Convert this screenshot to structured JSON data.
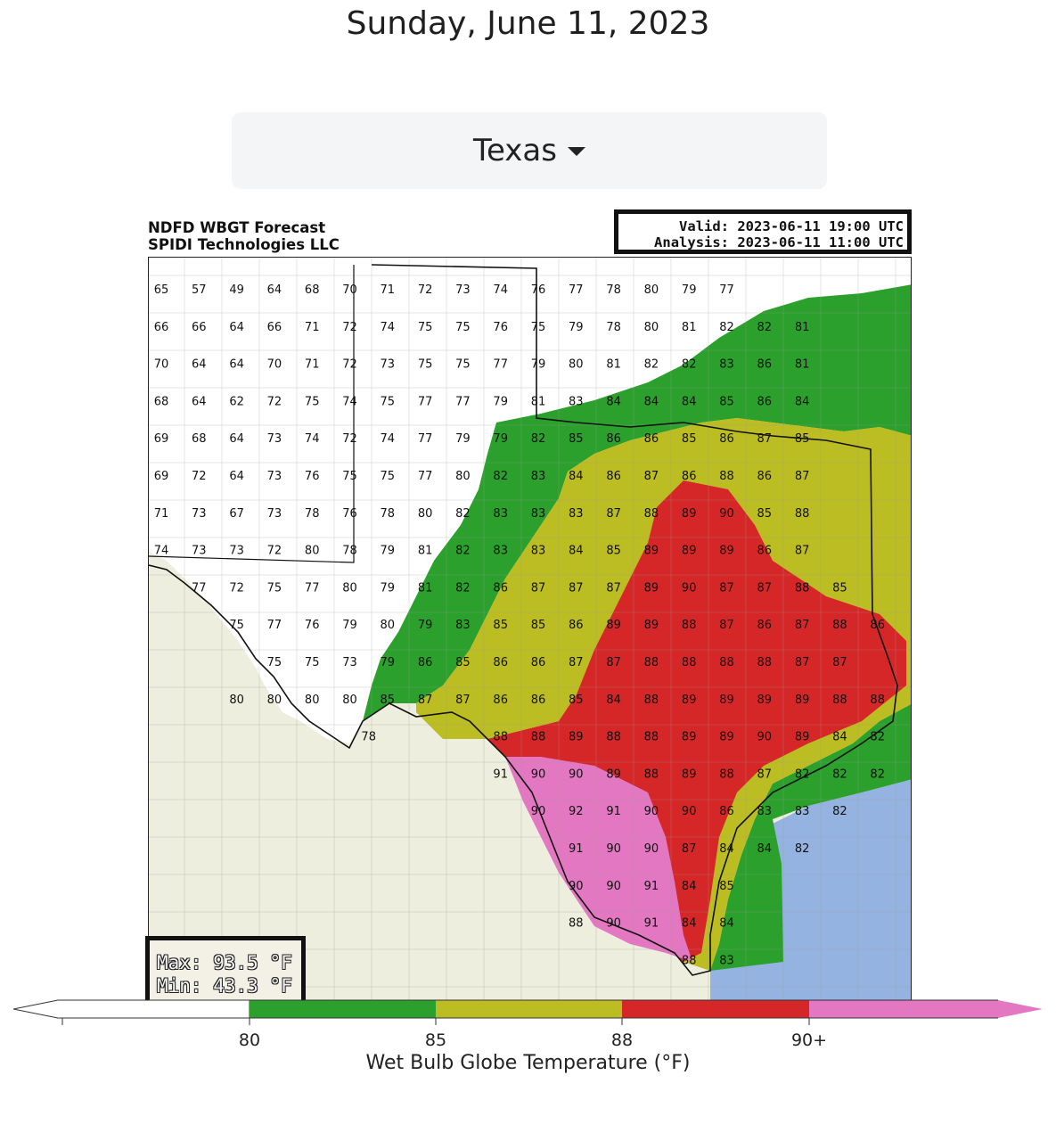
{
  "page": {
    "date": "Sunday, June 11, 2023"
  },
  "region_selector": {
    "selected": "Texas"
  },
  "map": {
    "title_line1": "NDFD WBGT Forecast",
    "title_line2": "SPIDI Technologies LLC",
    "valid": "Valid: 2023-06-11 19:00 UTC",
    "analysis": "Analysis: 2023-06-11 11:00 UTC",
    "max": "Max: 93.5 °F",
    "min": "Min: 43.3 °F"
  },
  "colorbar": {
    "title": "Wet Bulb Globe Temperature (°F)",
    "ticks": [
      "80",
      "85",
      "88",
      "90+"
    ],
    "bins": [
      {
        "range": "below 80",
        "color": "#ffffff"
      },
      {
        "range": "80-85",
        "color": "#2ca02c"
      },
      {
        "range": "85-88",
        "color": "#bcbd22"
      },
      {
        "range": "88-90",
        "color": "#d62728"
      },
      {
        "range": "90+",
        "color": "#e377c2"
      }
    ]
  },
  "colors": {
    "land": "#edeedd",
    "water": "#94b3e0",
    "white_bin": "#ffffff",
    "green_bin": "#2ca02c",
    "yellow_bin": "#bcbd22",
    "red_bin": "#d62728",
    "pink_bin": "#e377c2"
  },
  "grid_labels": [
    {
      "lon": -106.4,
      "lat": 36.9,
      "v": "65"
    },
    {
      "lon": -105.6,
      "lat": 36.9,
      "v": "57"
    },
    {
      "lon": -104.8,
      "lat": 36.9,
      "v": "49"
    },
    {
      "lon": -104.0,
      "lat": 36.9,
      "v": "64"
    },
    {
      "lon": -103.2,
      "lat": 36.9,
      "v": "68"
    },
    {
      "lon": -102.4,
      "lat": 36.9,
      "v": "70"
    },
    {
      "lon": -101.6,
      "lat": 36.9,
      "v": "71"
    },
    {
      "lon": -100.8,
      "lat": 36.9,
      "v": "72"
    },
    {
      "lon": -100.0,
      "lat": 36.9,
      "v": "73"
    },
    {
      "lon": -99.2,
      "lat": 36.9,
      "v": "74"
    },
    {
      "lon": -98.4,
      "lat": 36.9,
      "v": "76"
    },
    {
      "lon": -97.6,
      "lat": 36.9,
      "v": "77"
    },
    {
      "lon": -96.8,
      "lat": 36.9,
      "v": "78"
    },
    {
      "lon": -96.0,
      "lat": 36.9,
      "v": "80"
    },
    {
      "lon": -95.2,
      "lat": 36.9,
      "v": "79"
    },
    {
      "lon": -94.4,
      "lat": 36.9,
      "v": "77"
    },
    {
      "lon": -106.4,
      "lat": 36.1,
      "v": "66"
    },
    {
      "lon": -105.6,
      "lat": 36.1,
      "v": "66"
    },
    {
      "lon": -104.8,
      "lat": 36.1,
      "v": "64"
    },
    {
      "lon": -104.0,
      "lat": 36.1,
      "v": "66"
    },
    {
      "lon": -103.2,
      "lat": 36.1,
      "v": "71"
    },
    {
      "lon": -102.4,
      "lat": 36.1,
      "v": "72"
    },
    {
      "lon": -101.6,
      "lat": 36.1,
      "v": "74"
    },
    {
      "lon": -100.8,
      "lat": 36.1,
      "v": "75"
    },
    {
      "lon": -100.0,
      "lat": 36.1,
      "v": "75"
    },
    {
      "lon": -99.2,
      "lat": 36.1,
      "v": "76"
    },
    {
      "lon": -98.4,
      "lat": 36.1,
      "v": "75"
    },
    {
      "lon": -97.6,
      "lat": 36.1,
      "v": "79"
    },
    {
      "lon": -96.8,
      "lat": 36.1,
      "v": "78"
    },
    {
      "lon": -96.0,
      "lat": 36.1,
      "v": "80"
    },
    {
      "lon": -95.2,
      "lat": 36.1,
      "v": "81"
    },
    {
      "lon": -94.4,
      "lat": 36.1,
      "v": "82"
    },
    {
      "lon": -93.6,
      "lat": 36.1,
      "v": "82"
    },
    {
      "lon": -92.8,
      "lat": 36.1,
      "v": "81"
    },
    {
      "lon": -106.4,
      "lat": 35.3,
      "v": "70"
    },
    {
      "lon": -105.6,
      "lat": 35.3,
      "v": "64"
    },
    {
      "lon": -104.8,
      "lat": 35.3,
      "v": "64"
    },
    {
      "lon": -104.0,
      "lat": 35.3,
      "v": "70"
    },
    {
      "lon": -103.2,
      "lat": 35.3,
      "v": "71"
    },
    {
      "lon": -102.4,
      "lat": 35.3,
      "v": "72"
    },
    {
      "lon": -101.6,
      "lat": 35.3,
      "v": "73"
    },
    {
      "lon": -100.8,
      "lat": 35.3,
      "v": "75"
    },
    {
      "lon": -100.0,
      "lat": 35.3,
      "v": "75"
    },
    {
      "lon": -99.2,
      "lat": 35.3,
      "v": "77"
    },
    {
      "lon": -98.4,
      "lat": 35.3,
      "v": "79"
    },
    {
      "lon": -97.6,
      "lat": 35.3,
      "v": "80"
    },
    {
      "lon": -96.8,
      "lat": 35.3,
      "v": "81"
    },
    {
      "lon": -96.0,
      "lat": 35.3,
      "v": "82"
    },
    {
      "lon": -95.2,
      "lat": 35.3,
      "v": "82"
    },
    {
      "lon": -94.4,
      "lat": 35.3,
      "v": "83"
    },
    {
      "lon": -93.6,
      "lat": 35.3,
      "v": "86"
    },
    {
      "lon": -92.8,
      "lat": 35.3,
      "v": "81"
    },
    {
      "lon": -106.4,
      "lat": 34.5,
      "v": "68"
    },
    {
      "lon": -105.6,
      "lat": 34.5,
      "v": "64"
    },
    {
      "lon": -104.8,
      "lat": 34.5,
      "v": "62"
    },
    {
      "lon": -104.0,
      "lat": 34.5,
      "v": "72"
    },
    {
      "lon": -103.2,
      "lat": 34.5,
      "v": "75"
    },
    {
      "lon": -102.4,
      "lat": 34.5,
      "v": "74"
    },
    {
      "lon": -101.6,
      "lat": 34.5,
      "v": "75"
    },
    {
      "lon": -100.8,
      "lat": 34.5,
      "v": "77"
    },
    {
      "lon": -100.0,
      "lat": 34.5,
      "v": "77"
    },
    {
      "lon": -99.2,
      "lat": 34.5,
      "v": "79"
    },
    {
      "lon": -98.4,
      "lat": 34.5,
      "v": "81"
    },
    {
      "lon": -97.6,
      "lat": 34.5,
      "v": "83"
    },
    {
      "lon": -96.8,
      "lat": 34.5,
      "v": "84"
    },
    {
      "lon": -96.0,
      "lat": 34.5,
      "v": "84"
    },
    {
      "lon": -95.2,
      "lat": 34.5,
      "v": "84"
    },
    {
      "lon": -94.4,
      "lat": 34.5,
      "v": "85"
    },
    {
      "lon": -93.6,
      "lat": 34.5,
      "v": "86"
    },
    {
      "lon": -92.8,
      "lat": 34.5,
      "v": "84"
    },
    {
      "lon": -106.4,
      "lat": 33.7,
      "v": "69"
    },
    {
      "lon": -105.6,
      "lat": 33.7,
      "v": "68"
    },
    {
      "lon": -104.8,
      "lat": 33.7,
      "v": "64"
    },
    {
      "lon": -104.0,
      "lat": 33.7,
      "v": "73"
    },
    {
      "lon": -103.2,
      "lat": 33.7,
      "v": "74"
    },
    {
      "lon": -102.4,
      "lat": 33.7,
      "v": "72"
    },
    {
      "lon": -101.6,
      "lat": 33.7,
      "v": "74"
    },
    {
      "lon": -100.8,
      "lat": 33.7,
      "v": "77"
    },
    {
      "lon": -100.0,
      "lat": 33.7,
      "v": "79"
    },
    {
      "lon": -99.2,
      "lat": 33.7,
      "v": "79"
    },
    {
      "lon": -98.4,
      "lat": 33.7,
      "v": "82"
    },
    {
      "lon": -97.6,
      "lat": 33.7,
      "v": "85"
    },
    {
      "lon": -96.8,
      "lat": 33.7,
      "v": "86"
    },
    {
      "lon": -96.0,
      "lat": 33.7,
      "v": "86"
    },
    {
      "lon": -95.2,
      "lat": 33.7,
      "v": "85"
    },
    {
      "lon": -94.4,
      "lat": 33.7,
      "v": "86"
    },
    {
      "lon": -93.6,
      "lat": 33.7,
      "v": "87"
    },
    {
      "lon": -92.8,
      "lat": 33.7,
      "v": "85"
    },
    {
      "lon": -106.4,
      "lat": 32.9,
      "v": "69"
    },
    {
      "lon": -105.6,
      "lat": 32.9,
      "v": "72"
    },
    {
      "lon": -104.8,
      "lat": 32.9,
      "v": "64"
    },
    {
      "lon": -104.0,
      "lat": 32.9,
      "v": "73"
    },
    {
      "lon": -103.2,
      "lat": 32.9,
      "v": "76"
    },
    {
      "lon": -102.4,
      "lat": 32.9,
      "v": "75"
    },
    {
      "lon": -101.6,
      "lat": 32.9,
      "v": "75"
    },
    {
      "lon": -100.8,
      "lat": 32.9,
      "v": "77"
    },
    {
      "lon": -100.0,
      "lat": 32.9,
      "v": "80"
    },
    {
      "lon": -99.2,
      "lat": 32.9,
      "v": "82"
    },
    {
      "lon": -98.4,
      "lat": 32.9,
      "v": "83"
    },
    {
      "lon": -97.6,
      "lat": 32.9,
      "v": "84"
    },
    {
      "lon": -96.8,
      "lat": 32.9,
      "v": "86"
    },
    {
      "lon": -96.0,
      "lat": 32.9,
      "v": "87"
    },
    {
      "lon": -95.2,
      "lat": 32.9,
      "v": "86"
    },
    {
      "lon": -94.4,
      "lat": 32.9,
      "v": "88"
    },
    {
      "lon": -93.6,
      "lat": 32.9,
      "v": "86"
    },
    {
      "lon": -92.8,
      "lat": 32.9,
      "v": "87"
    },
    {
      "lon": -106.4,
      "lat": 32.1,
      "v": "71"
    },
    {
      "lon": -105.6,
      "lat": 32.1,
      "v": "73"
    },
    {
      "lon": -104.8,
      "lat": 32.1,
      "v": "67"
    },
    {
      "lon": -104.0,
      "lat": 32.1,
      "v": "73"
    },
    {
      "lon": -103.2,
      "lat": 32.1,
      "v": "78"
    },
    {
      "lon": -102.4,
      "lat": 32.1,
      "v": "76"
    },
    {
      "lon": -101.6,
      "lat": 32.1,
      "v": "78"
    },
    {
      "lon": -100.8,
      "lat": 32.1,
      "v": "80"
    },
    {
      "lon": -100.0,
      "lat": 32.1,
      "v": "82"
    },
    {
      "lon": -99.2,
      "lat": 32.1,
      "v": "83"
    },
    {
      "lon": -98.4,
      "lat": 32.1,
      "v": "83"
    },
    {
      "lon": -97.6,
      "lat": 32.1,
      "v": "83"
    },
    {
      "lon": -96.8,
      "lat": 32.1,
      "v": "87"
    },
    {
      "lon": -96.0,
      "lat": 32.1,
      "v": "88"
    },
    {
      "lon": -95.2,
      "lat": 32.1,
      "v": "89"
    },
    {
      "lon": -94.4,
      "lat": 32.1,
      "v": "90"
    },
    {
      "lon": -93.6,
      "lat": 32.1,
      "v": "85"
    },
    {
      "lon": -92.8,
      "lat": 32.1,
      "v": "88"
    },
    {
      "lon": -106.4,
      "lat": 31.3,
      "v": "74"
    },
    {
      "lon": -105.6,
      "lat": 31.3,
      "v": "73"
    },
    {
      "lon": -104.8,
      "lat": 31.3,
      "v": "73"
    },
    {
      "lon": -104.0,
      "lat": 31.3,
      "v": "72"
    },
    {
      "lon": -103.2,
      "lat": 31.3,
      "v": "80"
    },
    {
      "lon": -102.4,
      "lat": 31.3,
      "v": "78"
    },
    {
      "lon": -101.6,
      "lat": 31.3,
      "v": "79"
    },
    {
      "lon": -100.8,
      "lat": 31.3,
      "v": "81"
    },
    {
      "lon": -100.0,
      "lat": 31.3,
      "v": "82"
    },
    {
      "lon": -99.2,
      "lat": 31.3,
      "v": "83"
    },
    {
      "lon": -98.4,
      "lat": 31.3,
      "v": "83"
    },
    {
      "lon": -97.6,
      "lat": 31.3,
      "v": "84"
    },
    {
      "lon": -96.8,
      "lat": 31.3,
      "v": "85"
    },
    {
      "lon": -96.0,
      "lat": 31.3,
      "v": "89"
    },
    {
      "lon": -95.2,
      "lat": 31.3,
      "v": "89"
    },
    {
      "lon": -94.4,
      "lat": 31.3,
      "v": "89"
    },
    {
      "lon": -93.6,
      "lat": 31.3,
      "v": "86"
    },
    {
      "lon": -92.8,
      "lat": 31.3,
      "v": "87"
    },
    {
      "lon": -105.6,
      "lat": 30.5,
      "v": "77"
    },
    {
      "lon": -104.8,
      "lat": 30.5,
      "v": "72"
    },
    {
      "lon": -104.0,
      "lat": 30.5,
      "v": "75"
    },
    {
      "lon": -103.2,
      "lat": 30.5,
      "v": "77"
    },
    {
      "lon": -102.4,
      "lat": 30.5,
      "v": "80"
    },
    {
      "lon": -101.6,
      "lat": 30.5,
      "v": "79"
    },
    {
      "lon": -100.8,
      "lat": 30.5,
      "v": "81"
    },
    {
      "lon": -100.0,
      "lat": 30.5,
      "v": "82"
    },
    {
      "lon": -99.2,
      "lat": 30.5,
      "v": "86"
    },
    {
      "lon": -98.4,
      "lat": 30.5,
      "v": "87"
    },
    {
      "lon": -97.6,
      "lat": 30.5,
      "v": "87"
    },
    {
      "lon": -96.8,
      "lat": 30.5,
      "v": "87"
    },
    {
      "lon": -96.0,
      "lat": 30.5,
      "v": "89"
    },
    {
      "lon": -95.2,
      "lat": 30.5,
      "v": "90"
    },
    {
      "lon": -94.4,
      "lat": 30.5,
      "v": "87"
    },
    {
      "lon": -93.6,
      "lat": 30.5,
      "v": "87"
    },
    {
      "lon": -92.8,
      "lat": 30.5,
      "v": "88"
    },
    {
      "lon": -92.0,
      "lat": 30.5,
      "v": "85"
    },
    {
      "lon": -104.8,
      "lat": 29.7,
      "v": "75"
    },
    {
      "lon": -104.0,
      "lat": 29.7,
      "v": "77"
    },
    {
      "lon": -103.2,
      "lat": 29.7,
      "v": "76"
    },
    {
      "lon": -102.4,
      "lat": 29.7,
      "v": "79"
    },
    {
      "lon": -101.6,
      "lat": 29.7,
      "v": "80"
    },
    {
      "lon": -100.8,
      "lat": 29.7,
      "v": "79"
    },
    {
      "lon": -100.0,
      "lat": 29.7,
      "v": "83"
    },
    {
      "lon": -99.2,
      "lat": 29.7,
      "v": "85"
    },
    {
      "lon": -98.4,
      "lat": 29.7,
      "v": "85"
    },
    {
      "lon": -97.6,
      "lat": 29.7,
      "v": "86"
    },
    {
      "lon": -96.8,
      "lat": 29.7,
      "v": "89"
    },
    {
      "lon": -96.0,
      "lat": 29.7,
      "v": "89"
    },
    {
      "lon": -95.2,
      "lat": 29.7,
      "v": "88"
    },
    {
      "lon": -94.4,
      "lat": 29.7,
      "v": "87"
    },
    {
      "lon": -93.6,
      "lat": 29.7,
      "v": "86"
    },
    {
      "lon": -92.8,
      "lat": 29.7,
      "v": "87"
    },
    {
      "lon": -92.0,
      "lat": 29.7,
      "v": "88"
    },
    {
      "lon": -91.2,
      "lat": 29.7,
      "v": "86"
    },
    {
      "lon": -104.0,
      "lat": 28.9,
      "v": "75"
    },
    {
      "lon": -103.2,
      "lat": 28.9,
      "v": "75"
    },
    {
      "lon": -102.4,
      "lat": 28.9,
      "v": "73"
    },
    {
      "lon": -101.6,
      "lat": 28.9,
      "v": "79"
    },
    {
      "lon": -100.8,
      "lat": 28.9,
      "v": "86"
    },
    {
      "lon": -100.0,
      "lat": 28.9,
      "v": "85"
    },
    {
      "lon": -99.2,
      "lat": 28.9,
      "v": "86"
    },
    {
      "lon": -98.4,
      "lat": 28.9,
      "v": "86"
    },
    {
      "lon": -97.6,
      "lat": 28.9,
      "v": "87"
    },
    {
      "lon": -96.8,
      "lat": 28.9,
      "v": "87"
    },
    {
      "lon": -96.0,
      "lat": 28.9,
      "v": "88"
    },
    {
      "lon": -95.2,
      "lat": 28.9,
      "v": "88"
    },
    {
      "lon": -94.4,
      "lat": 28.9,
      "v": "88"
    },
    {
      "lon": -93.6,
      "lat": 28.9,
      "v": "88"
    },
    {
      "lon": -92.8,
      "lat": 28.9,
      "v": "87"
    },
    {
      "lon": -92.0,
      "lat": 28.9,
      "v": "87"
    },
    {
      "lon": -104.8,
      "lat": 28.1,
      "v": "80"
    },
    {
      "lon": -104.0,
      "lat": 28.1,
      "v": "80"
    },
    {
      "lon": -103.2,
      "lat": 28.1,
      "v": "80"
    },
    {
      "lon": -102.4,
      "lat": 28.1,
      "v": "80"
    },
    {
      "lon": -101.6,
      "lat": 28.1,
      "v": "85"
    },
    {
      "lon": -100.8,
      "lat": 28.1,
      "v": "87"
    },
    {
      "lon": -100.0,
      "lat": 28.1,
      "v": "87"
    },
    {
      "lon": -99.2,
      "lat": 28.1,
      "v": "86"
    },
    {
      "lon": -98.4,
      "lat": 28.1,
      "v": "86"
    },
    {
      "lon": -97.6,
      "lat": 28.1,
      "v": "85"
    },
    {
      "lon": -96.8,
      "lat": 28.1,
      "v": "84"
    },
    {
      "lon": -96.0,
      "lat": 28.1,
      "v": "88"
    },
    {
      "lon": -95.2,
      "lat": 28.1,
      "v": "89"
    },
    {
      "lon": -94.4,
      "lat": 28.1,
      "v": "89"
    },
    {
      "lon": -93.6,
      "lat": 28.1,
      "v": "89"
    },
    {
      "lon": -92.8,
      "lat": 28.1,
      "v": "89"
    },
    {
      "lon": -92.0,
      "lat": 28.1,
      "v": "88"
    },
    {
      "lon": -91.2,
      "lat": 28.1,
      "v": "88"
    },
    {
      "lon": -102.0,
      "lat": 27.3,
      "v": "78"
    },
    {
      "lon": -99.2,
      "lat": 27.3,
      "v": "88"
    },
    {
      "lon": -98.4,
      "lat": 27.3,
      "v": "88"
    },
    {
      "lon": -97.6,
      "lat": 27.3,
      "v": "89"
    },
    {
      "lon": -96.8,
      "lat": 27.3,
      "v": "88"
    },
    {
      "lon": -96.0,
      "lat": 27.3,
      "v": "88"
    },
    {
      "lon": -95.2,
      "lat": 27.3,
      "v": "89"
    },
    {
      "lon": -94.4,
      "lat": 27.3,
      "v": "89"
    },
    {
      "lon": -93.6,
      "lat": 27.3,
      "v": "90"
    },
    {
      "lon": -92.8,
      "lat": 27.3,
      "v": "89"
    },
    {
      "lon": -92.0,
      "lat": 27.3,
      "v": "84"
    },
    {
      "lon": -91.2,
      "lat": 27.3,
      "v": "82"
    },
    {
      "lon": -99.2,
      "lat": 26.5,
      "v": "91"
    },
    {
      "lon": -98.4,
      "lat": 26.5,
      "v": "90"
    },
    {
      "lon": -97.6,
      "lat": 26.5,
      "v": "90"
    },
    {
      "lon": -96.8,
      "lat": 26.5,
      "v": "89"
    },
    {
      "lon": -96.0,
      "lat": 26.5,
      "v": "88"
    },
    {
      "lon": -95.2,
      "lat": 26.5,
      "v": "89"
    },
    {
      "lon": -94.4,
      "lat": 26.5,
      "v": "88"
    },
    {
      "lon": -93.6,
      "lat": 26.5,
      "v": "87"
    },
    {
      "lon": -92.8,
      "lat": 26.5,
      "v": "82"
    },
    {
      "lon": -92.0,
      "lat": 26.5,
      "v": "82"
    },
    {
      "lon": -91.2,
      "lat": 26.5,
      "v": "82"
    },
    {
      "lon": -98.4,
      "lat": 25.7,
      "v": "90"
    },
    {
      "lon": -97.6,
      "lat": 25.7,
      "v": "92"
    },
    {
      "lon": -96.8,
      "lat": 25.7,
      "v": "91"
    },
    {
      "lon": -96.0,
      "lat": 25.7,
      "v": "90"
    },
    {
      "lon": -95.2,
      "lat": 25.7,
      "v": "90"
    },
    {
      "lon": -94.4,
      "lat": 25.7,
      "v": "86"
    },
    {
      "lon": -93.6,
      "lat": 25.7,
      "v": "83"
    },
    {
      "lon": -92.8,
      "lat": 25.7,
      "v": "83"
    },
    {
      "lon": -92.0,
      "lat": 25.7,
      "v": "82"
    },
    {
      "lon": -97.6,
      "lat": 24.9,
      "v": "91"
    },
    {
      "lon": -96.8,
      "lat": 24.9,
      "v": "90"
    },
    {
      "lon": -96.0,
      "lat": 24.9,
      "v": "90"
    },
    {
      "lon": -95.2,
      "lat": 24.9,
      "v": "87"
    },
    {
      "lon": -94.4,
      "lat": 24.9,
      "v": "84"
    },
    {
      "lon": -93.6,
      "lat": 24.9,
      "v": "84"
    },
    {
      "lon": -92.8,
      "lat": 24.9,
      "v": "82"
    },
    {
      "lon": -97.6,
      "lat": 24.1,
      "v": "90"
    },
    {
      "lon": -96.8,
      "lat": 24.1,
      "v": "90"
    },
    {
      "lon": -96.0,
      "lat": 24.1,
      "v": "91"
    },
    {
      "lon": -95.2,
      "lat": 24.1,
      "v": "84"
    },
    {
      "lon": -94.4,
      "lat": 24.1,
      "v": "85"
    },
    {
      "lon": -97.6,
      "lat": 23.3,
      "v": "88"
    },
    {
      "lon": -96.8,
      "lat": 23.3,
      "v": "90"
    },
    {
      "lon": -96.0,
      "lat": 23.3,
      "v": "91"
    },
    {
      "lon": -95.2,
      "lat": 23.3,
      "v": "84"
    },
    {
      "lon": -94.4,
      "lat": 23.3,
      "v": "84"
    },
    {
      "lon": -95.2,
      "lat": 22.5,
      "v": "88"
    },
    {
      "lon": -94.4,
      "lat": 22.5,
      "v": "83"
    }
  ]
}
